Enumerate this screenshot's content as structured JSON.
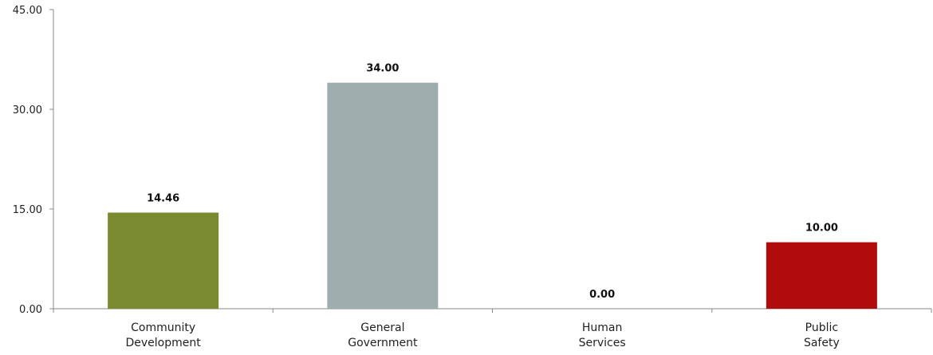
{
  "chart_data": {
    "type": "bar",
    "categories": [
      [
        "Community",
        "Development"
      ],
      [
        "General",
        "Government"
      ],
      [
        "Human",
        "Services"
      ],
      [
        "Public",
        "Safety"
      ]
    ],
    "values": [
      14.46,
      34.0,
      0.0,
      10.0
    ],
    "value_labels": [
      "14.46",
      "34.00",
      "0.00",
      "10.00"
    ],
    "colors": [
      "#7a8a2e",
      "#9eadad",
      "#9eadad",
      "#b00c0c"
    ],
    "ylim": [
      0,
      45
    ],
    "yticks": [
      0,
      15,
      30,
      45
    ],
    "ytick_labels": [
      "0.00",
      "15.00",
      "30.00",
      "45.00"
    ],
    "grid": false,
    "legend": "none"
  }
}
